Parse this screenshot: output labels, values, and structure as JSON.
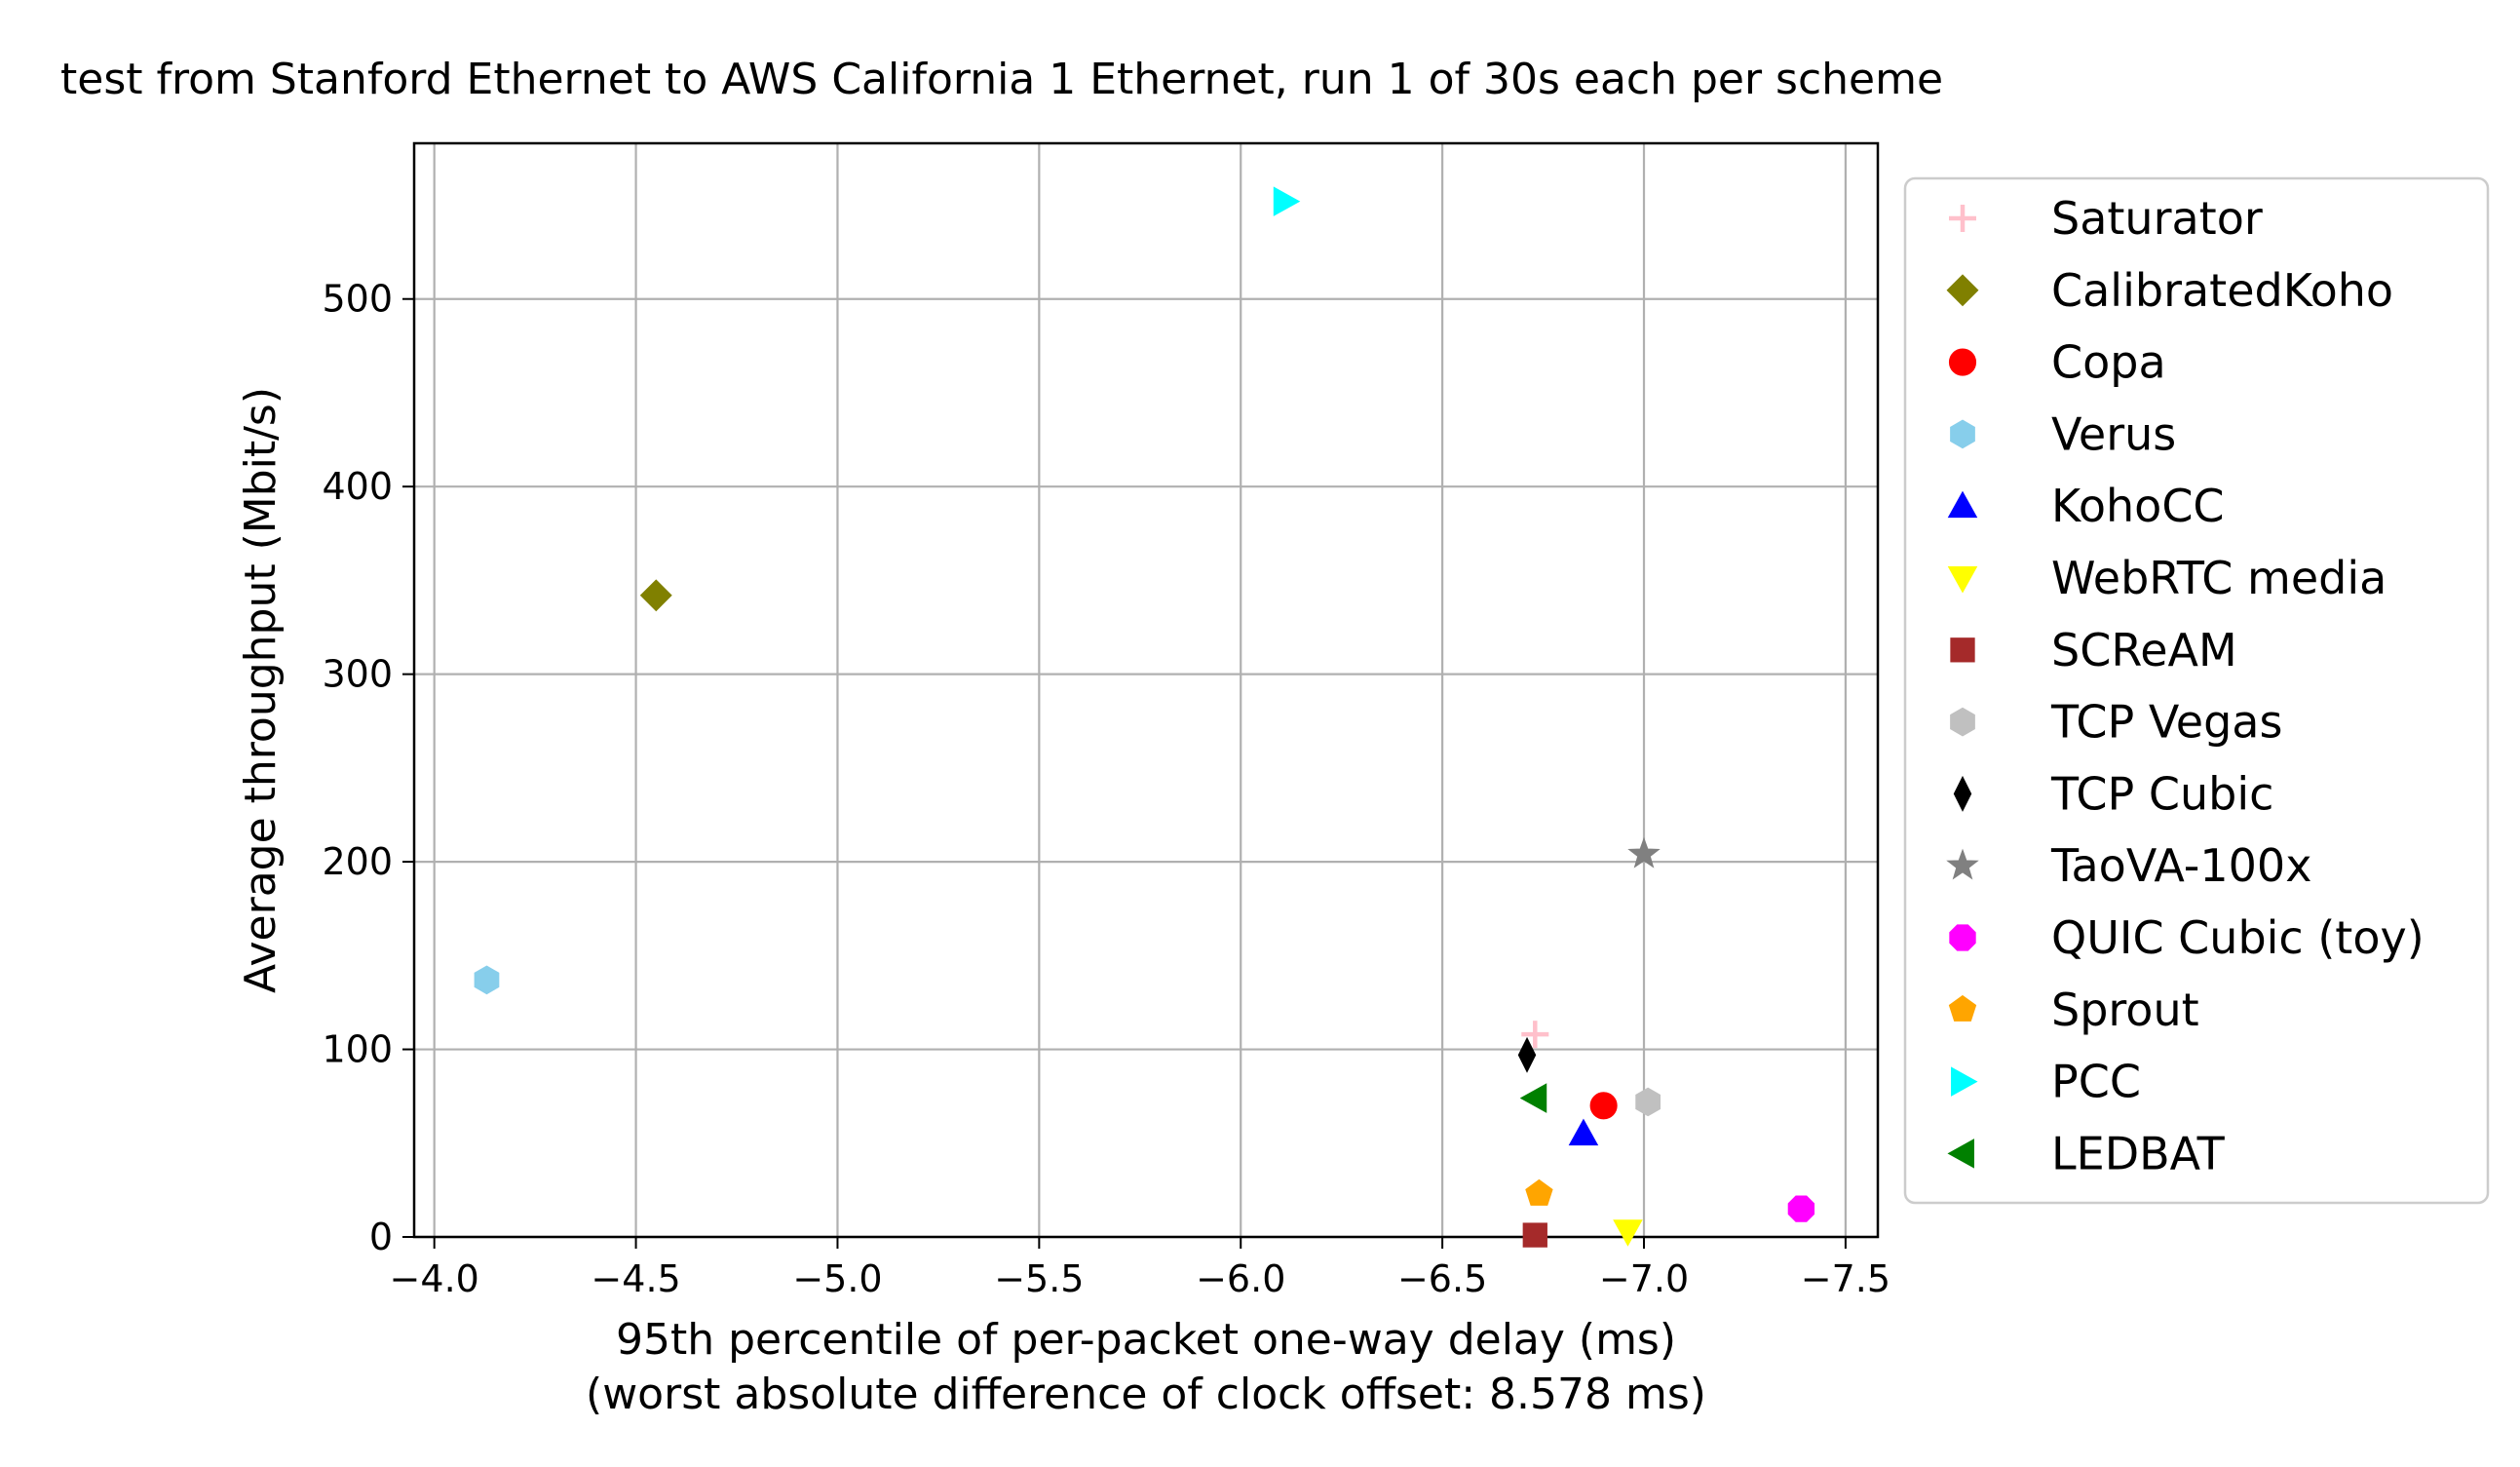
{
  "chart_data": {
    "type": "scatter",
    "title": "test from Stanford Ethernet to AWS California 1 Ethernet, run 1 of 30s each per scheme",
    "xlabel": "95th percentile of per-packet one-way delay (ms)",
    "xlabel_sub": "(worst absolute difference of clock offset: 8.578 ms)",
    "ylabel": "Average throughput (Mbit/s)",
    "xlim": [
      -3.95,
      -7.58
    ],
    "ylim": [
      0,
      583
    ],
    "x_inverted": true,
    "grid": true,
    "legend_position": "right-outside",
    "xticks": [
      -4.0,
      -4.5,
      -5.0,
      -5.5,
      -6.0,
      -6.5,
      -7.0,
      -7.5
    ],
    "xtick_labels": [
      "−4.0",
      "−4.5",
      "−5.0",
      "−5.5",
      "−6.0",
      "−6.5",
      "−7.0",
      "−7.5"
    ],
    "yticks": [
      0,
      100,
      200,
      300,
      400,
      500
    ],
    "ytick_labels": [
      "0",
      "100",
      "200",
      "300",
      "400",
      "500"
    ],
    "series": [
      {
        "name": "Saturator",
        "x": -6.73,
        "y": 108,
        "marker": "plus",
        "color": "#ffc0cb"
      },
      {
        "name": "CalibratedKoho",
        "x": -4.55,
        "y": 342,
        "marker": "diamond",
        "color": "#808000"
      },
      {
        "name": "Copa",
        "x": -6.9,
        "y": 70,
        "marker": "circle",
        "color": "#ff0000"
      },
      {
        "name": "Verus",
        "x": -4.13,
        "y": 137,
        "marker": "hexagon",
        "color": "#87ceeb"
      },
      {
        "name": "KohoCC",
        "x": -6.85,
        "y": 55,
        "marker": "triangle-up",
        "color": "#0000ff"
      },
      {
        "name": "WebRTC media",
        "x": -6.96,
        "y": 3,
        "marker": "triangle-down",
        "color": "#ffff00"
      },
      {
        "name": "SCReAM",
        "x": -6.73,
        "y": 1,
        "marker": "square",
        "color": "#a52a2a"
      },
      {
        "name": "TCP Vegas",
        "x": -7.01,
        "y": 72,
        "marker": "hexagon",
        "color": "#c0c0c0"
      },
      {
        "name": "TCP Cubic",
        "x": -6.71,
        "y": 97,
        "marker": "thin-diamond",
        "color": "#000000"
      },
      {
        "name": "TaoVA-100x",
        "x": -7.0,
        "y": 204,
        "marker": "star",
        "color": "#808080"
      },
      {
        "name": "QUIC Cubic (toy)",
        "x": -7.39,
        "y": 15,
        "marker": "octagon",
        "color": "#ff00ff"
      },
      {
        "name": "Sprout",
        "x": -6.74,
        "y": 23,
        "marker": "pentagon",
        "color": "#ffa500"
      },
      {
        "name": "PCC",
        "x": -6.11,
        "y": 552,
        "marker": "triangle-right",
        "color": "#00ffff"
      },
      {
        "name": "LEDBAT",
        "x": -6.73,
        "y": 74,
        "marker": "triangle-left",
        "color": "#008000"
      }
    ]
  }
}
